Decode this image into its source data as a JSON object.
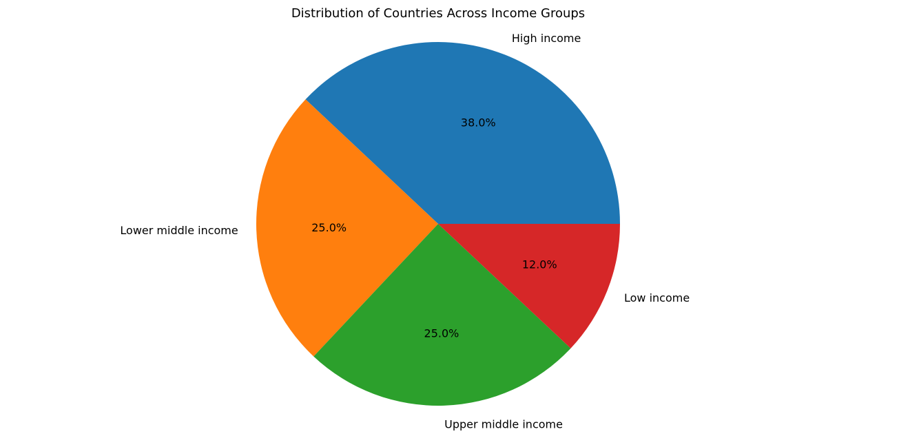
{
  "chart_data": {
    "type": "pie",
    "title": "Distribution of Countries Across Income Groups",
    "categories": [
      "High income",
      "Lower middle income",
      "Upper middle income",
      "Low income"
    ],
    "values": [
      38.0,
      25.0,
      25.0,
      12.0
    ],
    "percent_labels": [
      "38.0%",
      "25.0%",
      "25.0%",
      "12.0%"
    ],
    "colors": [
      "#1f77b4",
      "#ff7f0e",
      "#2ca02c",
      "#d62728"
    ],
    "start_angle_deg": 0,
    "direction": "counterclockwise",
    "legend": "none"
  }
}
